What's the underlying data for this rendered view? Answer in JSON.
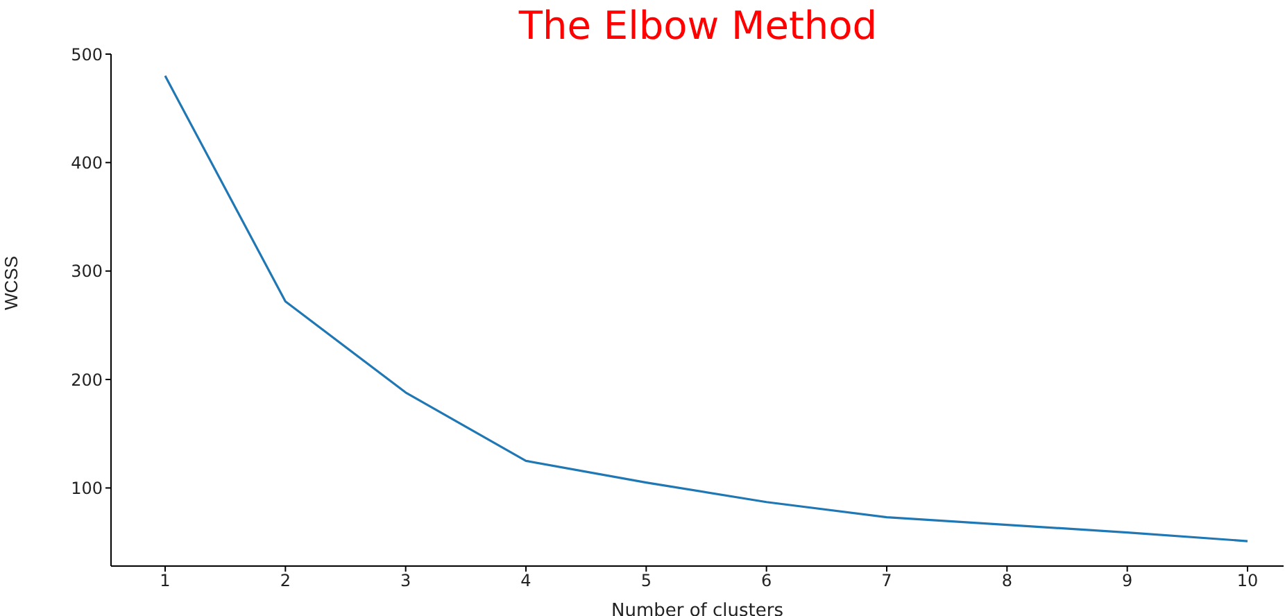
{
  "chart_data": {
    "type": "line",
    "title": "The Elbow Method",
    "xlabel": "Number of clusters",
    "ylabel": "WCSS",
    "x": [
      1,
      2,
      3,
      4,
      5,
      6,
      7,
      8,
      9,
      10
    ],
    "series": [
      {
        "color": "#1f77b4",
        "values": [
          480,
          272,
          188,
          125,
          105,
          87,
          73,
          66,
          59,
          51
        ]
      }
    ],
    "xlim": [
      0.55,
      10.3
    ],
    "xticks": [
      1,
      2,
      3,
      4,
      5,
      6,
      7,
      8,
      9,
      10
    ],
    "ylim": [
      28,
      500
    ],
    "yticks": [
      100,
      200,
      300,
      400,
      500
    ],
    "grid": false,
    "legend": false,
    "marker": "none",
    "line_style": "solid"
  }
}
